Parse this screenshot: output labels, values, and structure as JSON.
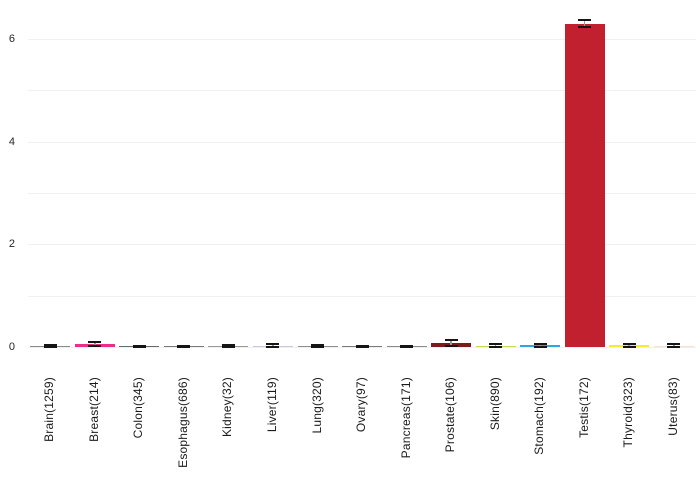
{
  "chart_data": {
    "type": "bar",
    "title": "",
    "xlabel": "",
    "ylabel": "",
    "legend": "none",
    "grid": "horizontal",
    "background_color": "#ffffff",
    "gridline_color": "#f0f0f0",
    "gridline_values": [
      0,
      1,
      2,
      3,
      4,
      5,
      6
    ],
    "yticks": [
      0,
      2,
      4,
      6
    ],
    "ylim": [
      0,
      6.55
    ],
    "categories": [
      "Brain(1259)",
      "Breast(214)",
      "Colon(345)",
      "Esophagus(686)",
      "Kidney(32)",
      "Liver(119)",
      "Lung(320)",
      "Ovary(97)",
      "Pancreas(171)",
      "Prostate(106)",
      "Skin(890)",
      "Stomach(192)",
      "Testis(172)",
      "Thyroid(323)",
      "Uterus(83)"
    ],
    "values": [
      0.02,
      0.06,
      0.01,
      0.015,
      0.02,
      0.03,
      0.02,
      0.01,
      0.015,
      0.08,
      0.03,
      0.035,
      6.3,
      0.035,
      0.03
    ],
    "errors": [
      0.02,
      0.03,
      0.012,
      0.015,
      0.02,
      0.02,
      0.02,
      0.012,
      0.015,
      0.05,
      0.03,
      0.03,
      0.07,
      0.03,
      0.025
    ],
    "bar_colors": [
      "#8a8a8a",
      "#ec2d8a",
      "#6b6b6b",
      "#7a7a7a",
      "#9a9a9a",
      "#cdc6df",
      "#8f8f8f",
      "#7a7a7a",
      "#8a8a8a",
      "#7d1a1e",
      "#c8d84f",
      "#29a8e0",
      "#c1202e",
      "#f6ec2d",
      "#f7e0ce"
    ],
    "error_cap_color": "#151515",
    "error_whisker_color": "#999999"
  }
}
